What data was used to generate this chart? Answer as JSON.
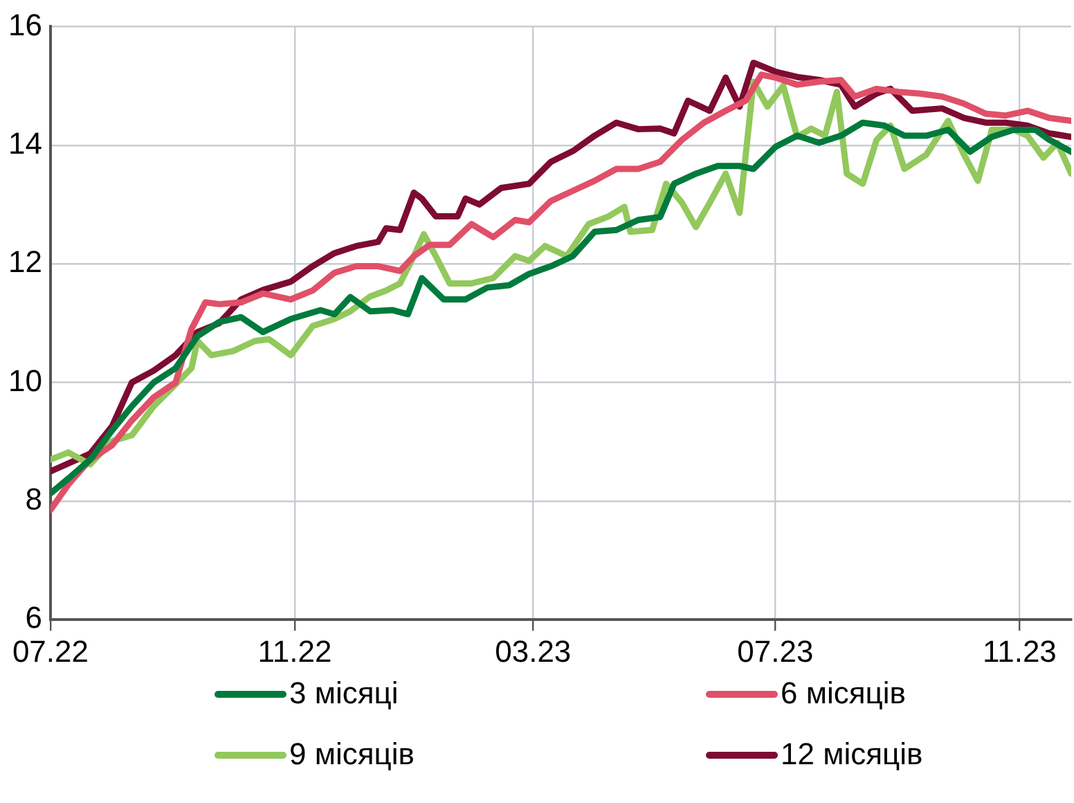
{
  "chart_data": {
    "type": "line",
    "legend": "bottom",
    "grid": true,
    "marker": "none",
    "line_style": "solid",
    "xlim": [
      "2022-07-01",
      "2023-11-27"
    ],
    "xticks": [
      {
        "value": "2022-07-01",
        "label": "07.22"
      },
      {
        "value": "2022-11-01",
        "label": "11.22"
      },
      {
        "value": "2023-03-01",
        "label": "03.23"
      },
      {
        "value": "2023-07-01",
        "label": "07.23"
      },
      {
        "value": "2023-11-01",
        "label": "11.23"
      }
    ],
    "ylim": [
      6,
      16
    ],
    "yticks": [
      6,
      8,
      10,
      12,
      14,
      16
    ],
    "series": [
      {
        "name": "3 місяці",
        "color": "#007a3d",
        "x": [
          "2022-07-01",
          "2022-07-10",
          "2022-07-21",
          "2022-08-01",
          "2022-08-11",
          "2022-08-22",
          "2022-09-02",
          "2022-09-13",
          "2022-09-24",
          "2022-10-05",
          "2022-10-16",
          "2022-10-30",
          "2022-11-14",
          "2022-11-21",
          "2022-11-29",
          "2022-12-09",
          "2022-12-20",
          "2022-12-28",
          "2023-01-04",
          "2023-01-15",
          "2023-01-26",
          "2023-02-06",
          "2023-02-17",
          "2023-02-27",
          "2023-03-10",
          "2023-03-21",
          "2023-04-01",
          "2023-04-12",
          "2023-04-23",
          "2023-05-04",
          "2023-05-11",
          "2023-05-22",
          "2023-06-02",
          "2023-06-13",
          "2023-06-20",
          "2023-07-01",
          "2023-07-12",
          "2023-07-23",
          "2023-08-03",
          "2023-08-14",
          "2023-08-25",
          "2023-09-04",
          "2023-09-15",
          "2023-09-26",
          "2023-10-07",
          "2023-10-18",
          "2023-10-29",
          "2023-11-09",
          "2023-11-16",
          "2023-11-27"
        ],
        "values": [
          8.13,
          8.38,
          8.7,
          9.19,
          9.6,
          10.0,
          10.24,
          10.78,
          11.02,
          11.1,
          10.85,
          11.07,
          11.22,
          11.15,
          11.44,
          11.2,
          11.22,
          11.15,
          11.76,
          11.4,
          11.4,
          11.6,
          11.64,
          11.83,
          11.96,
          12.13,
          12.54,
          12.57,
          12.74,
          12.79,
          13.35,
          13.52,
          13.65,
          13.65,
          13.6,
          13.97,
          14.16,
          14.04,
          14.16,
          14.38,
          14.33,
          14.16,
          14.16,
          14.26,
          13.89,
          14.14,
          14.26,
          14.26,
          14.09,
          13.89
        ]
      },
      {
        "name": "6 місяців",
        "color": "#e05068",
        "x": [
          "2022-07-01",
          "2022-07-10",
          "2022-07-21",
          "2022-08-01",
          "2022-08-11",
          "2022-08-22",
          "2022-09-02",
          "2022-09-10",
          "2022-09-17",
          "2022-09-24",
          "2022-10-05",
          "2022-10-16",
          "2022-10-30",
          "2022-11-10",
          "2022-11-21",
          "2022-12-02",
          "2022-12-13",
          "2022-12-24",
          "2022-12-31",
          "2023-01-08",
          "2023-01-18",
          "2023-01-29",
          "2023-02-09",
          "2023-02-20",
          "2023-02-27",
          "2023-03-10",
          "2023-03-21",
          "2023-04-01",
          "2023-04-12",
          "2023-04-23",
          "2023-05-04",
          "2023-05-15",
          "2023-05-26",
          "2023-06-06",
          "2023-06-16",
          "2023-06-24",
          "2023-07-01",
          "2023-07-12",
          "2023-07-23",
          "2023-08-03",
          "2023-08-10",
          "2023-08-21",
          "2023-09-01",
          "2023-09-12",
          "2023-09-23",
          "2023-10-04",
          "2023-10-15",
          "2023-10-25",
          "2023-11-05",
          "2023-11-16",
          "2023-11-27"
        ],
        "values": [
          7.85,
          8.28,
          8.7,
          8.94,
          9.36,
          9.75,
          10.0,
          10.9,
          11.35,
          11.32,
          11.35,
          11.5,
          11.4,
          11.55,
          11.85,
          11.96,
          11.96,
          11.88,
          12.13,
          12.32,
          12.32,
          12.67,
          12.45,
          12.74,
          12.7,
          13.06,
          13.23,
          13.4,
          13.6,
          13.6,
          13.72,
          14.09,
          14.38,
          14.58,
          14.75,
          15.19,
          15.14,
          15.02,
          15.07,
          15.1,
          14.82,
          14.95,
          14.9,
          14.87,
          14.82,
          14.7,
          14.53,
          14.5,
          14.58,
          14.46,
          14.41
        ]
      },
      {
        "name": "9 місяців",
        "color": "#92c85c",
        "x": [
          "2022-07-01",
          "2022-07-10",
          "2022-07-21",
          "2022-08-01",
          "2022-08-11",
          "2022-08-22",
          "2022-09-02",
          "2022-09-10",
          "2022-09-13",
          "2022-09-20",
          "2022-10-01",
          "2022-10-12",
          "2022-10-19",
          "2022-10-30",
          "2022-11-10",
          "2022-11-21",
          "2022-11-29",
          "2022-12-09",
          "2022-12-17",
          "2022-12-24",
          "2022-12-31",
          "2023-01-05",
          "2023-01-11",
          "2023-01-18",
          "2023-01-29",
          "2023-02-09",
          "2023-02-20",
          "2023-02-27",
          "2023-03-07",
          "2023-03-18",
          "2023-03-29",
          "2023-04-08",
          "2023-04-16",
          "2023-04-19",
          "2023-04-30",
          "2023-05-07",
          "2023-05-15",
          "2023-05-22",
          "2023-05-29",
          "2023-06-06",
          "2023-06-13",
          "2023-06-20",
          "2023-06-27",
          "2023-07-05",
          "2023-07-12",
          "2023-07-19",
          "2023-07-26",
          "2023-08-01",
          "2023-08-06",
          "2023-08-14",
          "2023-08-21",
          "2023-08-28",
          "2023-09-04",
          "2023-09-15",
          "2023-09-26",
          "2023-10-04",
          "2023-10-11",
          "2023-10-18",
          "2023-10-29",
          "2023-11-05",
          "2023-11-13",
          "2023-11-20",
          "2023-11-27"
        ],
        "values": [
          8.7,
          8.82,
          8.62,
          9.01,
          9.11,
          9.6,
          9.97,
          10.24,
          10.7,
          10.46,
          10.53,
          10.7,
          10.73,
          10.46,
          10.95,
          11.07,
          11.2,
          11.45,
          11.55,
          11.67,
          12.13,
          12.5,
          12.13,
          11.67,
          11.67,
          11.76,
          12.13,
          12.05,
          12.3,
          12.13,
          12.67,
          12.8,
          12.96,
          12.54,
          12.57,
          13.35,
          13.03,
          12.62,
          13.03,
          13.52,
          12.86,
          15.07,
          14.65,
          15.0,
          14.14,
          14.28,
          14.16,
          14.9,
          13.52,
          13.35,
          14.09,
          14.33,
          13.6,
          13.84,
          14.41,
          13.84,
          13.4,
          14.26,
          14.26,
          14.16,
          13.79,
          14.04,
          13.52
        ]
      },
      {
        "name": "12 місяців",
        "color": "#7d0b32",
        "x": [
          "2022-07-01",
          "2022-07-21",
          "2022-08-01",
          "2022-08-11",
          "2022-08-22",
          "2022-09-02",
          "2022-09-13",
          "2022-09-24",
          "2022-10-05",
          "2022-10-16",
          "2022-10-30",
          "2022-11-10",
          "2022-11-21",
          "2022-12-02",
          "2022-12-13",
          "2022-12-17",
          "2022-12-24",
          "2022-12-31",
          "2023-01-04",
          "2023-01-11",
          "2023-01-22",
          "2023-01-26",
          "2023-02-02",
          "2023-02-13",
          "2023-02-27",
          "2023-03-10",
          "2023-03-21",
          "2023-04-01",
          "2023-04-12",
          "2023-04-23",
          "2023-05-04",
          "2023-05-11",
          "2023-05-18",
          "2023-05-29",
          "2023-06-06",
          "2023-06-13",
          "2023-06-20",
          "2023-07-01",
          "2023-07-12",
          "2023-07-23",
          "2023-08-03",
          "2023-08-10",
          "2023-08-21",
          "2023-08-28",
          "2023-09-08",
          "2023-09-23",
          "2023-10-04",
          "2023-10-15",
          "2023-10-25",
          "2023-11-05",
          "2023-11-16",
          "2023-11-27"
        ],
        "values": [
          8.5,
          8.8,
          9.26,
          10.0,
          10.2,
          10.46,
          10.85,
          11.0,
          11.4,
          11.56,
          11.7,
          11.96,
          12.18,
          12.3,
          12.37,
          12.6,
          12.57,
          13.2,
          13.1,
          12.8,
          12.8,
          13.1,
          13.0,
          13.28,
          13.35,
          13.72,
          13.9,
          14.16,
          14.38,
          14.27,
          14.28,
          14.2,
          14.75,
          14.58,
          15.14,
          14.65,
          15.39,
          15.24,
          15.15,
          15.1,
          15.02,
          14.65,
          14.87,
          14.95,
          14.58,
          14.62,
          14.46,
          14.38,
          14.38,
          14.33,
          14.2,
          14.14
        ]
      }
    ]
  }
}
